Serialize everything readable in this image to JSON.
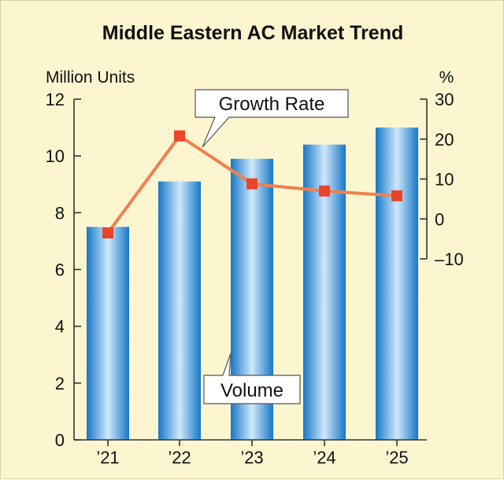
{
  "chart_data": {
    "type": "bar+line",
    "title": "Middle Eastern AC Market Trend",
    "categories": [
      "’21",
      "’22",
      "’23",
      "’24",
      "’25"
    ],
    "series": [
      {
        "name": "Volume",
        "axis": "left",
        "type": "bar",
        "values": [
          7.5,
          9.1,
          9.9,
          10.4,
          11.0
        ]
      },
      {
        "name": "Growth Rate",
        "axis": "right",
        "type": "line",
        "values": [
          -3.5,
          20.8,
          8.8,
          7.0,
          5.8
        ]
      }
    ],
    "y_left": {
      "label": "Million Units",
      "ylim": [
        0,
        12
      ],
      "ticks": [
        "0",
        "2",
        "4",
        "6",
        "8",
        "10",
        "12"
      ]
    },
    "y_right": {
      "label": "%",
      "ylim": [
        -10,
        30
      ],
      "ticks": [
        "–10",
        "0",
        "10",
        "20",
        "30"
      ]
    },
    "annotations": {
      "line_label": "Growth Rate",
      "bar_label": "Volume"
    },
    "colors": {
      "bar_dark": "#1677c8",
      "bar_light": "#cfe8fb",
      "line": "#f08050",
      "marker": "#e8452b",
      "background": "#fbf6cf"
    }
  }
}
